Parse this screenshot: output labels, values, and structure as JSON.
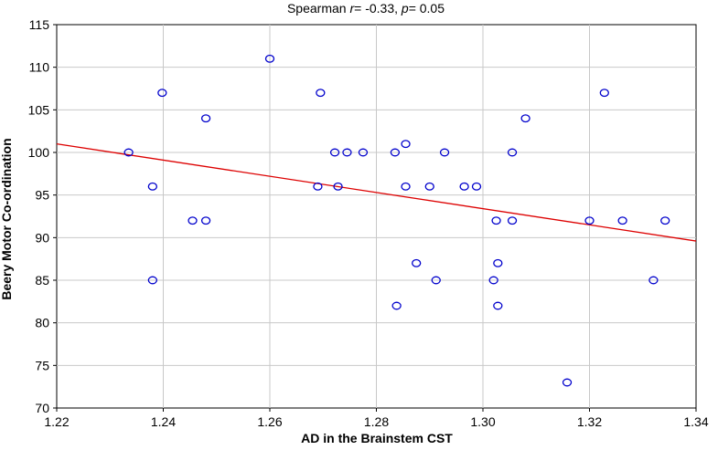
{
  "chart_data": {
    "type": "scatter",
    "title_parts": {
      "prefix": "Spearman ",
      "r_symbol": "r",
      "r_text": "= -0.33, ",
      "p_symbol": "p",
      "p_text": "= 0.05"
    },
    "xlabel": "AD in the Brainstem CST",
    "ylabel": "Beery Motor Co-ordination",
    "xlim": [
      1.22,
      1.34
    ],
    "ylim": [
      70,
      115
    ],
    "x_ticks": [
      "1.22",
      "1.24",
      "1.26",
      "1.28",
      "1.30",
      "1.32",
      "1.34"
    ],
    "y_ticks": [
      "70",
      "75",
      "80",
      "85",
      "90",
      "95",
      "100",
      "105",
      "110",
      "115"
    ],
    "grid": true,
    "marker_color": "#0000cc",
    "fit_color": "#dd0000",
    "fit_line": {
      "x": [
        1.22,
        1.34
      ],
      "y": [
        101.0,
        89.6
      ]
    },
    "points": [
      {
        "x": 1.2335,
        "y": 100
      },
      {
        "x": 1.238,
        "y": 96
      },
      {
        "x": 1.238,
        "y": 85
      },
      {
        "x": 1.2398,
        "y": 107
      },
      {
        "x": 1.2455,
        "y": 92
      },
      {
        "x": 1.248,
        "y": 104
      },
      {
        "x": 1.248,
        "y": 92
      },
      {
        "x": 1.26,
        "y": 111
      },
      {
        "x": 1.269,
        "y": 96
      },
      {
        "x": 1.2695,
        "y": 107
      },
      {
        "x": 1.2722,
        "y": 100
      },
      {
        "x": 1.2728,
        "y": 96
      },
      {
        "x": 1.2745,
        "y": 100
      },
      {
        "x": 1.2775,
        "y": 100
      },
      {
        "x": 1.2835,
        "y": 100
      },
      {
        "x": 1.2838,
        "y": 82
      },
      {
        "x": 1.2855,
        "y": 101
      },
      {
        "x": 1.2855,
        "y": 96
      },
      {
        "x": 1.2875,
        "y": 87
      },
      {
        "x": 1.29,
        "y": 96
      },
      {
        "x": 1.2912,
        "y": 85
      },
      {
        "x": 1.2928,
        "y": 100
      },
      {
        "x": 1.2965,
        "y": 96
      },
      {
        "x": 1.2988,
        "y": 96
      },
      {
        "x": 1.302,
        "y": 85
      },
      {
        "x": 1.3025,
        "y": 92
      },
      {
        "x": 1.3028,
        "y": 87
      },
      {
        "x": 1.3028,
        "y": 82
      },
      {
        "x": 1.3055,
        "y": 100
      },
      {
        "x": 1.3055,
        "y": 92
      },
      {
        "x": 1.308,
        "y": 104
      },
      {
        "x": 1.3158,
        "y": 73
      },
      {
        "x": 1.32,
        "y": 92
      },
      {
        "x": 1.3228,
        "y": 107
      },
      {
        "x": 1.3262,
        "y": 92
      },
      {
        "x": 1.332,
        "y": 85
      },
      {
        "x": 1.3342,
        "y": 92
      }
    ]
  }
}
